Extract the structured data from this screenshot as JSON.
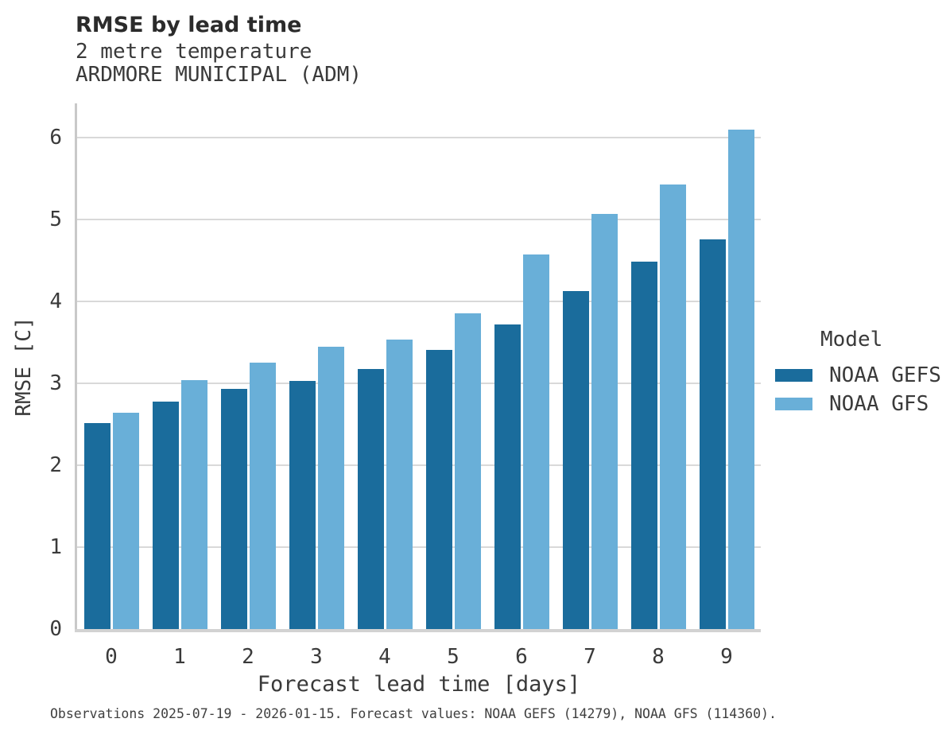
{
  "header": {
    "title": "RMSE by lead time",
    "subtitle_line1": "2 metre temperature",
    "subtitle_line2": "ARDMORE MUNICIPAL (ADM)"
  },
  "legend": {
    "title": "Model",
    "entries": [
      {
        "label": "NOAA GEFS",
        "color": "#1a6c9c"
      },
      {
        "label": "NOAA GFS",
        "color": "#69afd8"
      }
    ]
  },
  "footer": {
    "text": "Observations 2025-07-19 - 2026-01-15. Forecast values: NOAA GEFS (14279), NOAA GFS (114360)."
  },
  "chart_data": {
    "type": "bar",
    "title": "RMSE by lead time",
    "subtitle": "2 metre temperature — ARDMORE MUNICIPAL (ADM)",
    "categories": [
      "0",
      "1",
      "2",
      "3",
      "4",
      "5",
      "6",
      "7",
      "8",
      "9"
    ],
    "series": [
      {
        "name": "NOAA GEFS",
        "color": "#1a6c9c",
        "values": [
          2.52,
          2.78,
          2.93,
          3.03,
          3.18,
          3.41,
          3.72,
          4.13,
          4.49,
          4.76
        ]
      },
      {
        "name": "NOAA GFS",
        "color": "#69afd8",
        "values": [
          2.64,
          3.04,
          3.25,
          3.45,
          3.54,
          3.86,
          4.57,
          5.07,
          5.43,
          6.1
        ]
      }
    ],
    "xlabel": "Forecast lead time [days]",
    "ylabel": "RMSE [C]",
    "ylim": [
      0,
      6.42
    ],
    "yticks": [
      0,
      1,
      2,
      3,
      4,
      5,
      6
    ],
    "grid": "horizontal",
    "legend_position": "right",
    "legend_title": "Model"
  }
}
